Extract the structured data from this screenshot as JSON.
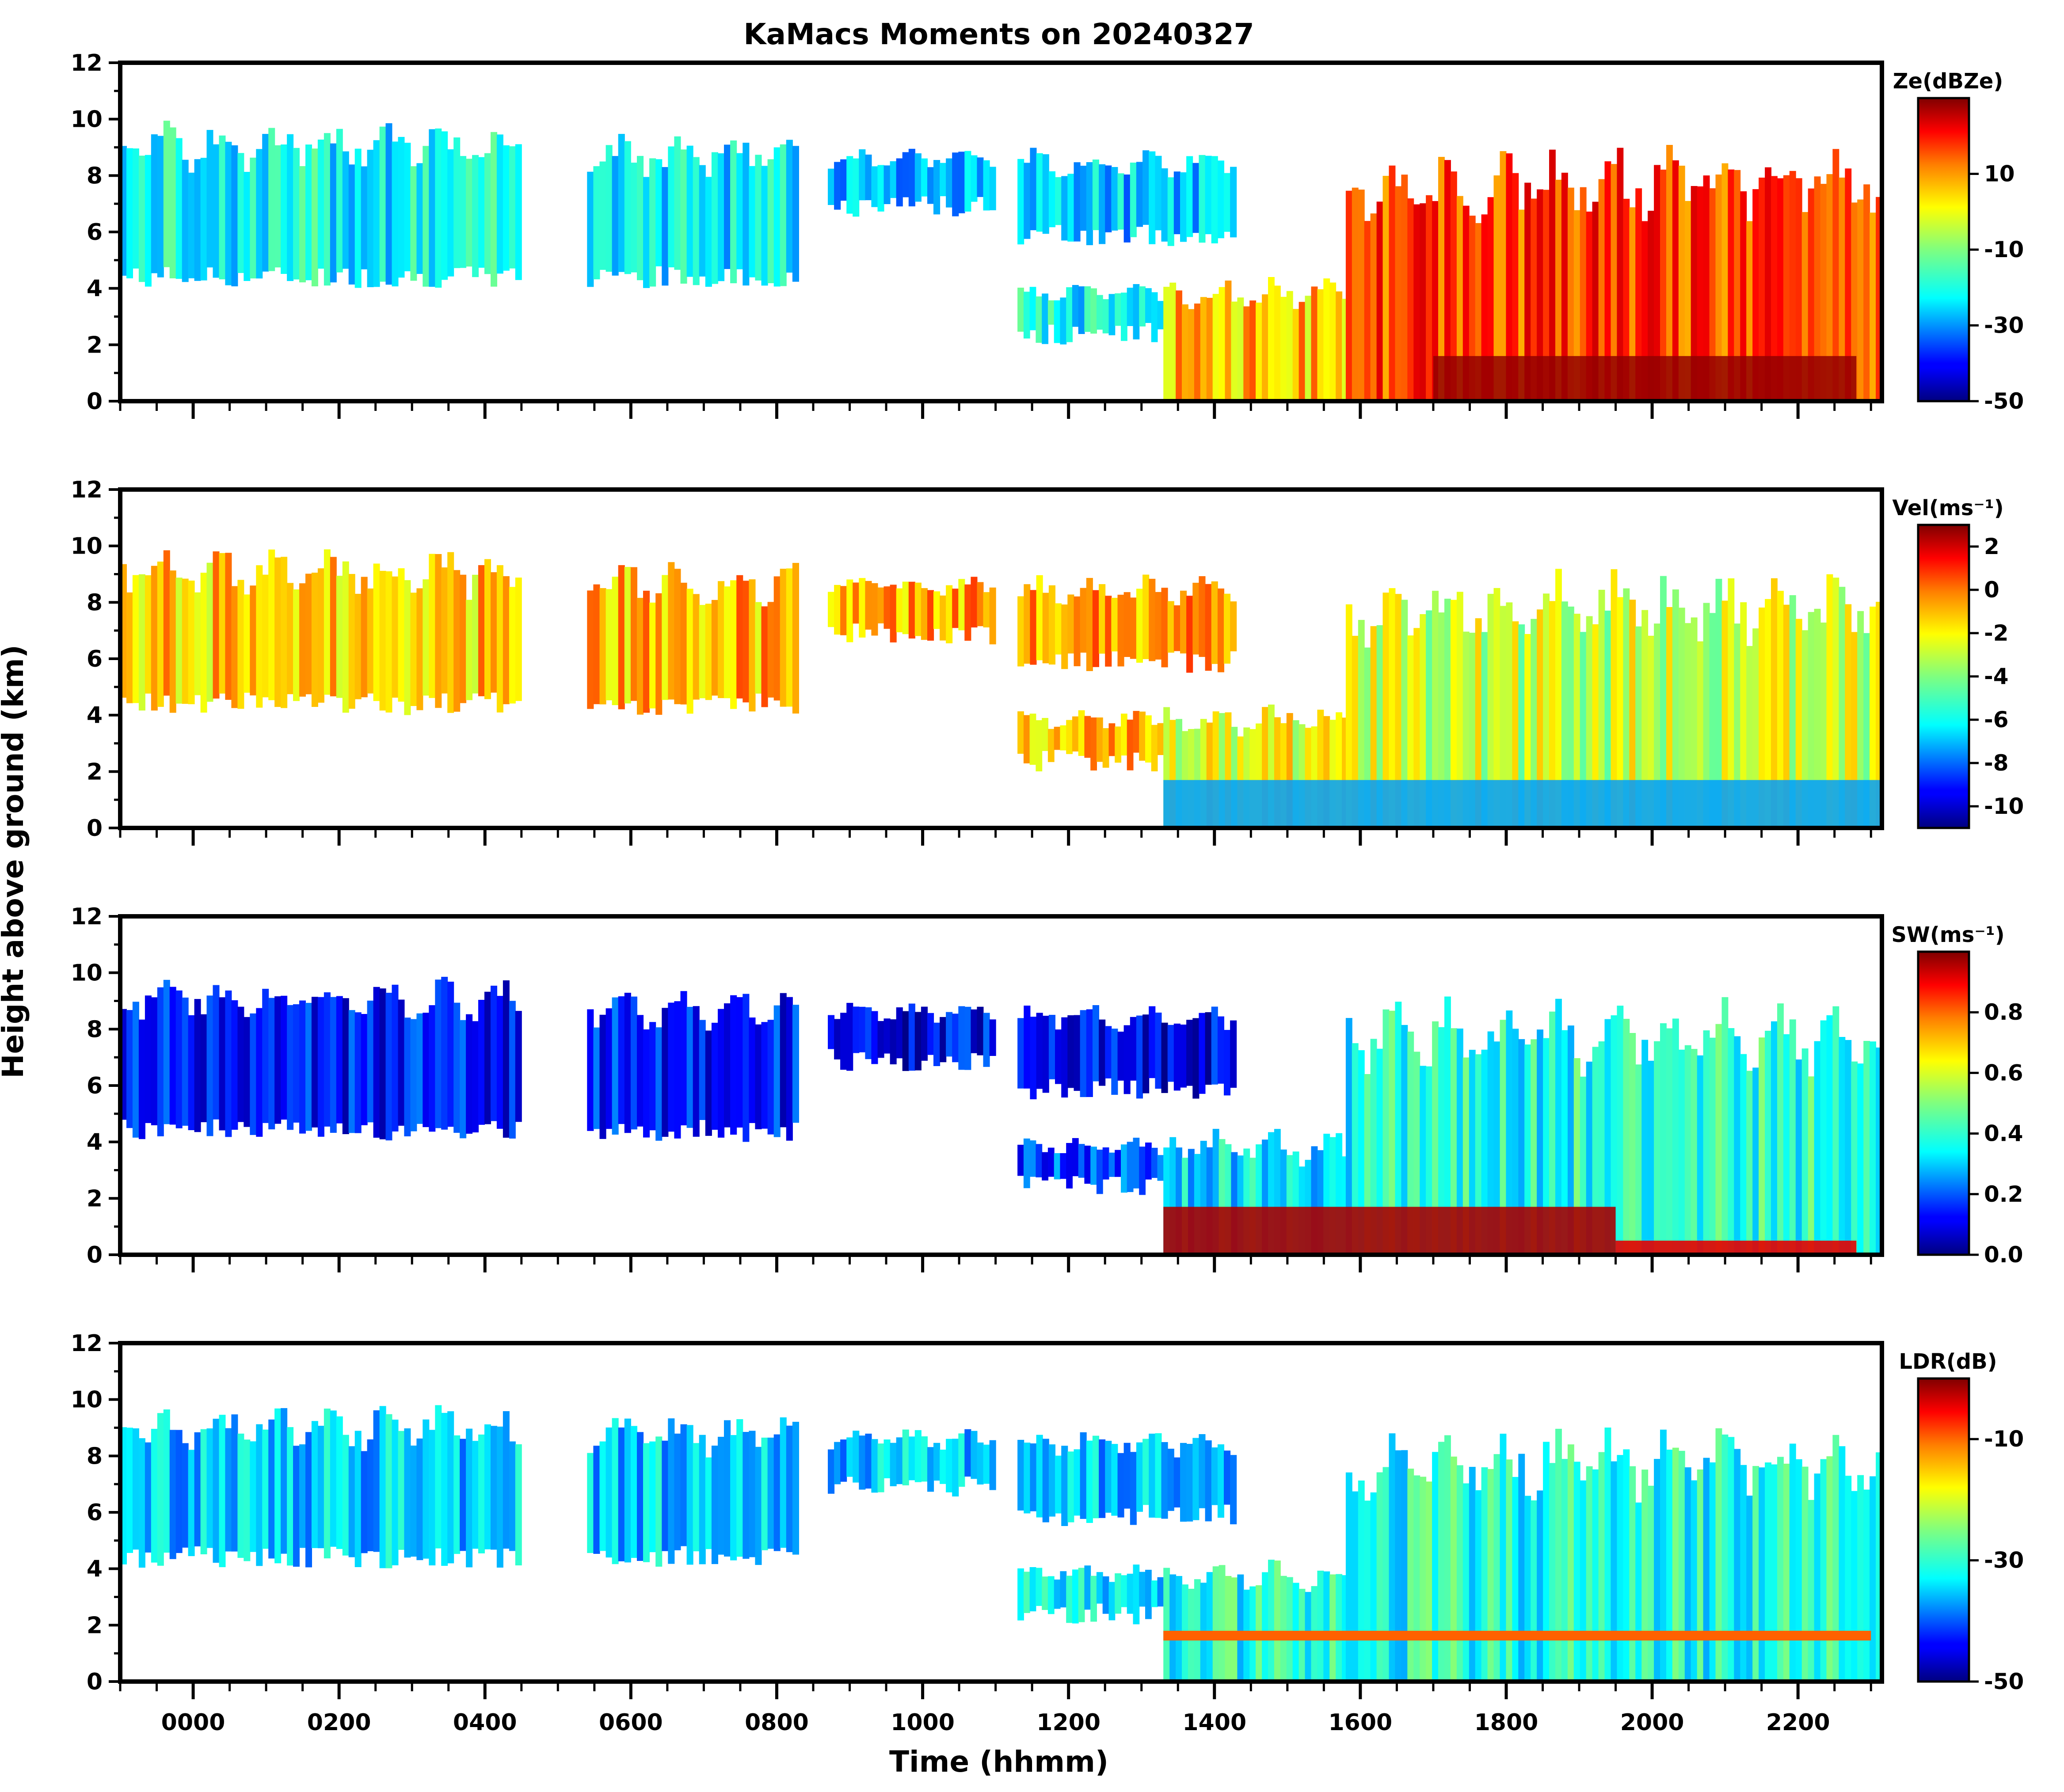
{
  "figure_title": "KaMacs Moments on 20240327",
  "chart_data": {
    "type": "heatmap",
    "title": "KaMacs Moments on 20240327",
    "xlabel": "Time (hhmm)",
    "ylabel": "Height above ground (km)",
    "x_tick_labels": [
      "0000",
      "0200",
      "0400",
      "0600",
      "0800",
      "1000",
      "1200",
      "1400",
      "1600",
      "1800",
      "2000",
      "2200"
    ],
    "x_tick_hours": [
      0,
      2,
      4,
      6,
      8,
      10,
      12,
      14,
      16,
      18,
      20,
      22
    ],
    "xlim_hours": [
      -1.0,
      23.15
    ],
    "ylim_km": [
      0,
      12
    ],
    "y_tick_labels": [
      "0",
      "2",
      "4",
      "6",
      "8",
      "10",
      "12"
    ],
    "y_tick_values": [
      0,
      2,
      4,
      6,
      8,
      10,
      12
    ],
    "panels": [
      {
        "name": "reflectivity",
        "colorbar_label": "Ze(dBZe)",
        "colorbar_range": [
          -50,
          30
        ],
        "colorbar_ticks": [
          -50,
          -30,
          -10,
          10
        ],
        "colorbar_tick_labels": [
          "-50",
          "-30",
          "-10",
          "10"
        ]
      },
      {
        "name": "velocity",
        "colorbar_label": "Vel(ms⁻¹)",
        "colorbar_range": [
          -11,
          3
        ],
        "colorbar_ticks": [
          -10,
          -8,
          -6,
          -4,
          -2,
          0,
          2
        ],
        "colorbar_tick_labels": [
          "-10",
          "-8",
          "-6",
          "-4",
          "-2",
          "0",
          "2"
        ]
      },
      {
        "name": "spectral-width",
        "colorbar_label": "SW(ms⁻¹)",
        "colorbar_range": [
          0.0,
          1.0
        ],
        "colorbar_ticks": [
          0.0,
          0.2,
          0.4,
          0.6,
          0.8
        ],
        "colorbar_tick_labels": [
          "0.0",
          "0.2",
          "0.4",
          "0.6",
          "0.8"
        ]
      },
      {
        "name": "ldr",
        "colorbar_label": "LDR(dB)",
        "colorbar_range": [
          -50,
          0
        ],
        "colorbar_ticks": [
          -50,
          -30,
          -10
        ],
        "colorbar_tick_labels": [
          "-50",
          "-30",
          "-10"
        ]
      }
    ],
    "colormap": [
      "#00007f",
      "#0000ff",
      "#007fff",
      "#00ffff",
      "#7fff7f",
      "#ffff00",
      "#ff7f00",
      "#ff0000",
      "#7f0000"
    ],
    "cloud_features": [
      {
        "label": "early upper cloud",
        "start_hour": -1.0,
        "end_hour": 4.5,
        "base_km": 4.0,
        "top_km": 10.0,
        "ze_dbz": -20,
        "vel": -1.5,
        "sw": 0.15,
        "ldr": -34
      },
      {
        "label": "cloud near 0530-0830",
        "start_hour": 5.4,
        "end_hour": 8.3,
        "base_km": 4.0,
        "top_km": 9.6,
        "ze_dbz": -22,
        "vel": -1.2,
        "sw": 0.15,
        "ldr": -34
      },
      {
        "label": "cloud near 0830-1100",
        "start_hour": 8.7,
        "end_hour": 11.0,
        "base_km": 6.5,
        "top_km": 9.0,
        "ze_dbz": -25,
        "vel": -1.0,
        "sw": 0.12,
        "ldr": -34
      },
      {
        "label": "cloud near 1100-1400",
        "start_hour": 11.3,
        "end_hour": 14.3,
        "base_km": 5.5,
        "top_km": 9.0,
        "ze_dbz": -25,
        "vel": -1.0,
        "sw": 0.12,
        "ldr": -34
      },
      {
        "label": "lower deck 1130-1330",
        "start_hour": 11.3,
        "end_hour": 13.3,
        "base_km": 2.0,
        "top_km": 4.2,
        "ze_dbz": -20,
        "vel": -1.5,
        "sw": 0.2,
        "ldr": -32
      },
      {
        "label": "precipitation 1330-1600",
        "start_hour": 13.3,
        "end_hour": 16.0,
        "base_km": 0.0,
        "top_km": 4.5,
        "ze_dbz": 5,
        "vel": -2.5,
        "sw": 0.35,
        "ldr": -30
      },
      {
        "label": "deep precipitation 1600-2300",
        "start_hour": 15.8,
        "end_hour": 23.15,
        "base_km": 0.0,
        "top_km": 9.2,
        "ze_dbz": 15,
        "vel": -3.0,
        "sw": 0.4,
        "ldr": -30
      }
    ]
  }
}
